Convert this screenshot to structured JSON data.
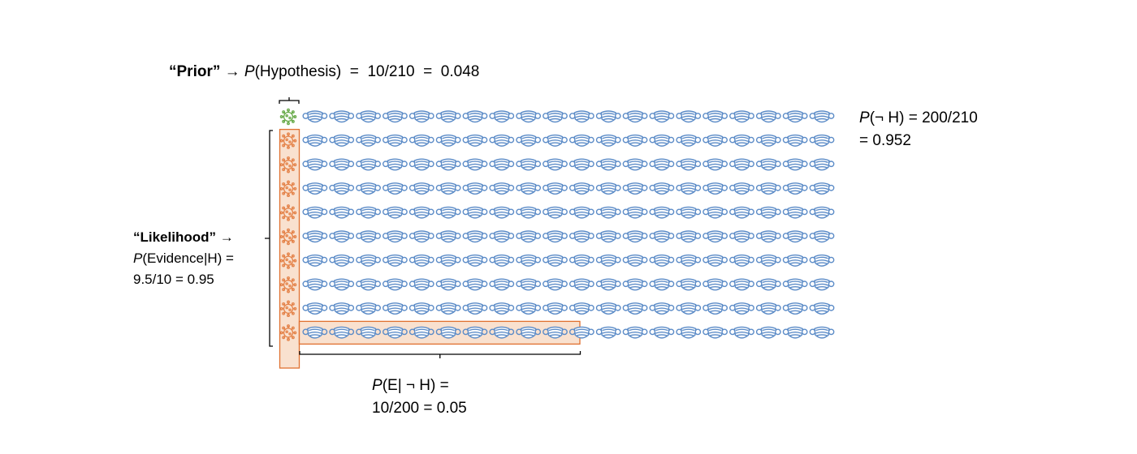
{
  "prior": {
    "label": "“Prior”",
    "arrow": "→",
    "p": "P",
    "expr": "(Hypothesis)  =  10/210  =  0.048"
  },
  "not_h": {
    "p": "P",
    "expr": "(¬ H) = 200/210",
    "value": "= 0.952"
  },
  "likelihood": {
    "label": "“Likelihood”",
    "arrow": "→",
    "p": "P",
    "expr": "(Evidence|H) =",
    "value": "9.5/10 = 0.95"
  },
  "false_alarm": {
    "p": "P",
    "expr": "(E| ¬ H) =",
    "value": "10/200 = 0.05"
  },
  "grid": {
    "rows": 10,
    "cols": 21,
    "virus_count": 10,
    "mask_count": 200,
    "hypothesis_marked": 1,
    "evidence_given_h": 9.5,
    "evidence_given_not_h": 10
  },
  "colors": {
    "mask": "#5b8bc7",
    "virus_prior": "#6aab4c",
    "virus": "#e4834a",
    "box_stroke": "#e07030",
    "box_fill": "#f7d9c3"
  }
}
